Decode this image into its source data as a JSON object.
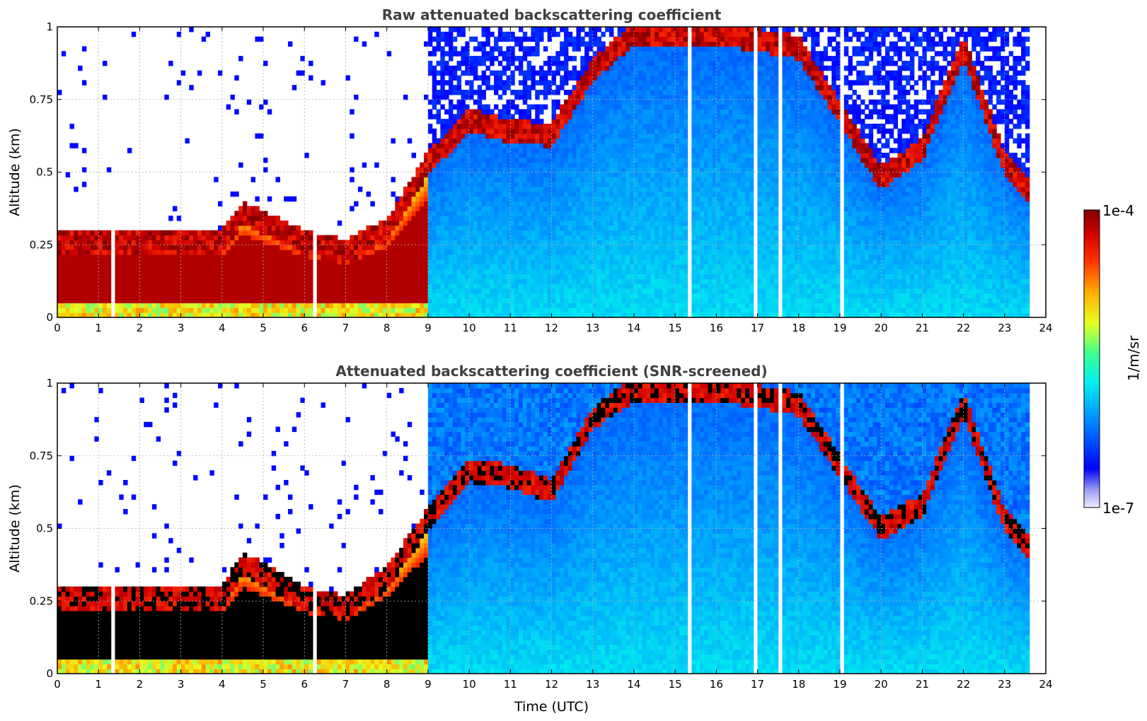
{
  "chart_data": {
    "colorbar": {
      "max_label": "1e-4",
      "min_label": "1e-7",
      "unit_label": "1/m/sr",
      "log_min": -7,
      "log_max": -4,
      "scale": "log",
      "colormap": "jet"
    },
    "panels": [
      {
        "type": "heatmap",
        "title": "Raw attenuated backscattering coefficient",
        "xlabel": "",
        "ylabel": "Altitude (km)",
        "xlim": [
          0,
          24
        ],
        "ylim": [
          0,
          1
        ],
        "x_ticks": [
          "0",
          "1",
          "2",
          "3",
          "4",
          "5",
          "6",
          "7",
          "8",
          "9",
          "10",
          "11",
          "12",
          "13",
          "14",
          "15",
          "16",
          "17",
          "18",
          "19",
          "20",
          "21",
          "22",
          "23",
          "24"
        ],
        "y_ticks": [
          "0",
          "0.25",
          "0.5",
          "0.75",
          "1"
        ],
        "grid": true,
        "screened": false,
        "cloud_top_km": [
          {
            "t": 0,
            "h": 0.28
          },
          {
            "t": 4,
            "h": 0.28
          },
          {
            "t": 4.5,
            "h": 0.38
          },
          {
            "t": 6,
            "h": 0.28
          },
          {
            "t": 7,
            "h": 0.25
          },
          {
            "t": 8,
            "h": 0.32
          },
          {
            "t": 9,
            "h": 0.55
          },
          {
            "t": 10,
            "h": 0.7
          },
          {
            "t": 11,
            "h": 0.66
          },
          {
            "t": 12,
            "h": 0.65
          },
          {
            "t": 13,
            "h": 0.87
          },
          {
            "t": 14,
            "h": 1.0
          },
          {
            "t": 16,
            "h": 1.0
          },
          {
            "t": 18,
            "h": 0.95
          },
          {
            "t": 20,
            "h": 0.5
          },
          {
            "t": 21,
            "h": 0.6
          },
          {
            "t": 22,
            "h": 0.95
          },
          {
            "t": 23,
            "h": 0.55
          },
          {
            "t": 23.65,
            "h": 0.45
          }
        ]
      },
      {
        "type": "heatmap",
        "title": "Attenuated backscattering coefficient (SNR-screened)",
        "xlabel": "Time (UTC)",
        "ylabel": "Altitude (km)",
        "xlim": [
          0,
          24
        ],
        "ylim": [
          0,
          1
        ],
        "x_ticks": [
          "0",
          "1",
          "2",
          "3",
          "4",
          "5",
          "6",
          "7",
          "8",
          "9",
          "10",
          "11",
          "12",
          "13",
          "14",
          "15",
          "16",
          "17",
          "18",
          "19",
          "20",
          "21",
          "22",
          "23",
          "24"
        ],
        "y_ticks": [
          "0",
          "0.25",
          "0.5",
          "0.75",
          "1"
        ],
        "grid": true,
        "screened": true,
        "cloud_top_km": [
          {
            "t": 0,
            "h": 0.28
          },
          {
            "t": 4,
            "h": 0.28
          },
          {
            "t": 4.5,
            "h": 0.4
          },
          {
            "t": 6,
            "h": 0.28
          },
          {
            "t": 7,
            "h": 0.25
          },
          {
            "t": 8,
            "h": 0.35
          },
          {
            "t": 9,
            "h": 0.55
          },
          {
            "t": 10,
            "h": 0.72
          },
          {
            "t": 11,
            "h": 0.7
          },
          {
            "t": 12,
            "h": 0.65
          },
          {
            "t": 13,
            "h": 0.9
          },
          {
            "t": 14,
            "h": 1.0
          },
          {
            "t": 16,
            "h": 1.0
          },
          {
            "t": 18,
            "h": 0.95
          },
          {
            "t": 20,
            "h": 0.52
          },
          {
            "t": 21,
            "h": 0.6
          },
          {
            "t": 22,
            "h": 0.95
          },
          {
            "t": 23,
            "h": 0.55
          },
          {
            "t": 23.65,
            "h": 0.45
          }
        ]
      }
    ]
  }
}
